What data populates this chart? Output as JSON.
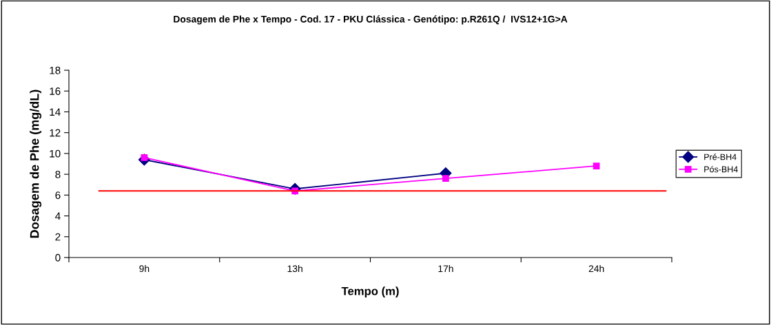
{
  "chart_data": {
    "type": "line",
    "title": "Dosagem de Phe x Tempo - Cod. 17 - PKU Clássica - Genótipo: p.R261Q /  IVS12+1G>A",
    "xlabel": "Tempo (m)",
    "ylabel": "Dosagem de Phe (mg/dL)",
    "categories": [
      "9h",
      "13h",
      "17h",
      "24h"
    ],
    "series": [
      {
        "name": "Pré-BH4",
        "color": "#000080",
        "marker": "diamond",
        "values": [
          9.4,
          6.6,
          8.1,
          null
        ]
      },
      {
        "name": "Pós-BH4",
        "color": "#ff00ff",
        "marker": "square",
        "values": [
          9.6,
          6.4,
          7.6,
          8.8
        ]
      }
    ],
    "ylim": [
      0,
      18
    ],
    "yticks": [
      0,
      2,
      4,
      6,
      8,
      10,
      12,
      14,
      16,
      18
    ],
    "ref_lines": [
      {
        "axis": "y",
        "value": 6.4,
        "color": "#ff0000",
        "line_style": "solid"
      }
    ],
    "grid": false,
    "legend": "right"
  }
}
